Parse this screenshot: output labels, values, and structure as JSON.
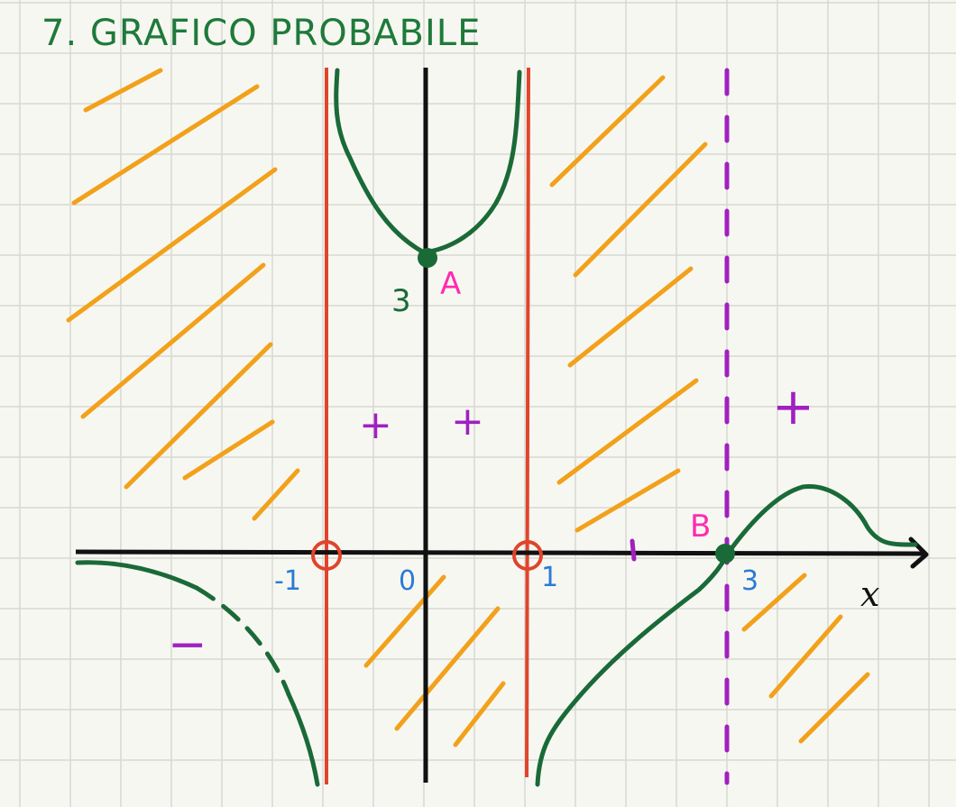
{
  "title": "7. GRAFICO PROBABILE",
  "colors": {
    "paper": "#f7f7f2",
    "grid": "#d9d9d2",
    "title": "#1f7a3a",
    "axis": "#111111",
    "asymptote": "#e0452b",
    "dashed_asymptote": "#a020c0",
    "curve": "#1a6a38",
    "hatch": "#f2a11a",
    "sign": "#a020c0",
    "point_label": "#ff2bb0",
    "tick_label": "#2a7bd6",
    "three_label": "#1a6a38"
  },
  "axis": {
    "x_label": "x"
  },
  "ticks": {
    "minus_one": "-1",
    "zero": "0",
    "one": "1",
    "three": "3"
  },
  "points": {
    "A": {
      "label": "A",
      "y_label": "3"
    },
    "B": {
      "label": "B"
    }
  },
  "signs": {
    "plus_1": "+",
    "plus_2": "+",
    "plus_3": "+",
    "minus_1": "−"
  },
  "icons": {
    "open_circle_neg1": "open-circle",
    "open_circle_pos1": "open-circle"
  }
}
